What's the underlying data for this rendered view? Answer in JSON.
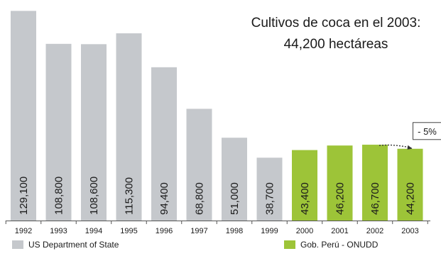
{
  "chart_data": {
    "type": "bar",
    "title": "Cultivos de coca en el 2003:",
    "subtitle": "44,200 hectáreas",
    "categories": [
      "1992",
      "1993",
      "1994",
      "1995",
      "1996",
      "1997",
      "1998",
      "1999",
      "2000",
      "2001",
      "2002",
      "2003"
    ],
    "series": [
      {
        "name": "US Department of State",
        "color": "#c5c8cc",
        "values": [
          129100,
          108800,
          108600,
          115300,
          94400,
          68800,
          51000,
          38700,
          null,
          null,
          null,
          null
        ],
        "labels": [
          "129,100",
          "108,800",
          "108,600",
          "115,300",
          "94,400",
          "68,800",
          "51,000",
          "38,700",
          null,
          null,
          null,
          null
        ]
      },
      {
        "name": "Gob. Perú - ONUDD",
        "color": "#9dc438",
        "values": [
          null,
          null,
          null,
          null,
          null,
          null,
          null,
          null,
          43400,
          46200,
          46700,
          44200
        ],
        "labels": [
          null,
          null,
          null,
          null,
          null,
          null,
          null,
          null,
          "43,400",
          "46,200",
          "46,700",
          "44,200"
        ]
      }
    ],
    "ylim": [
      0,
      131000
    ],
    "grid": false,
    "legend_position": "bottom",
    "annotation": {
      "text": "- 5%",
      "from": "2002",
      "to": "2003"
    }
  }
}
